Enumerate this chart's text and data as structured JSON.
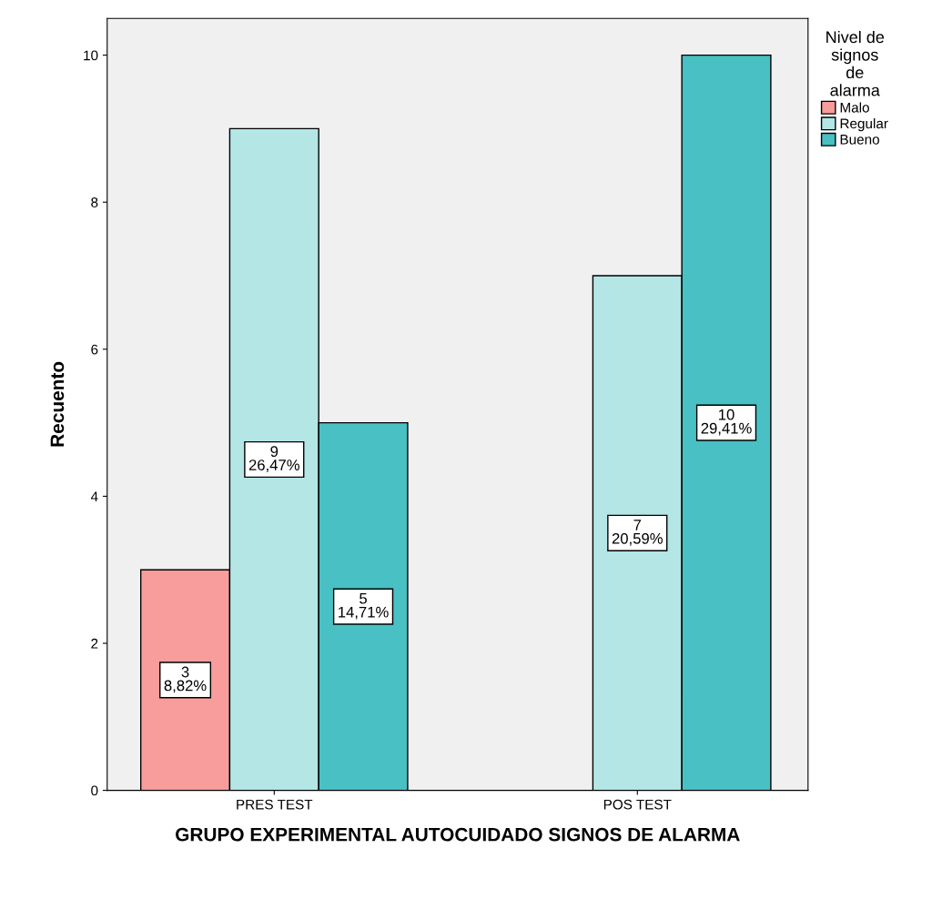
{
  "chart_data": {
    "type": "bar",
    "xlabel": "GRUPO EXPERIMENTAL AUTOCUIDADO SIGNOS DE ALARMA",
    "ylabel": "Recuento",
    "legend_title": "Nivel de\nsignos\nde\nalarma",
    "categories": [
      "PRES TEST",
      "POS TEST"
    ],
    "series": [
      {
        "name": "Malo",
        "color": "#f89c9c",
        "values": [
          3,
          null
        ],
        "value_labels": [
          "3\n8,82%",
          null
        ]
      },
      {
        "name": "Regular",
        "color": "#b4e6e6",
        "values": [
          9,
          7
        ],
        "value_labels": [
          "9\n26,47%",
          "7\n20,59%"
        ]
      },
      {
        "name": "Bueno",
        "color": "#48c0c4",
        "values": [
          5,
          10
        ],
        "value_labels": [
          "5\n14,71%",
          "10\n29,41%"
        ]
      }
    ],
    "ylim": [
      0,
      10.5
    ],
    "yticks": [
      0,
      2,
      4,
      6,
      8,
      10
    ],
    "grid": false,
    "legend": "top right"
  }
}
